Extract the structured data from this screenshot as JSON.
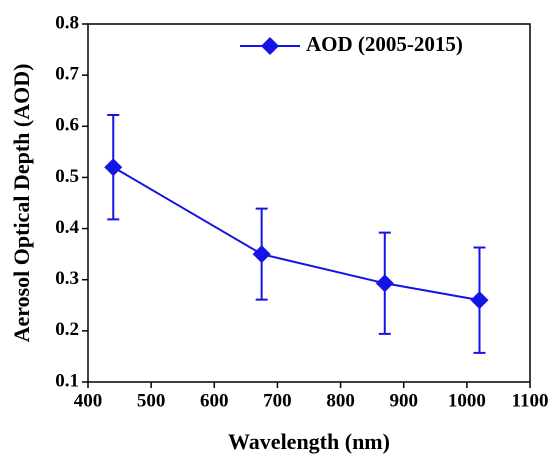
{
  "chart_data": {
    "type": "line",
    "x_label": "Wavelength (nm)",
    "y_label": "Aerosol Optical Depth (AOD)",
    "x": [
      440,
      675,
      870,
      1020
    ],
    "series": [
      {
        "name": "AOD (2005-2015)",
        "color": "#1414e6",
        "values": [
          0.52,
          0.35,
          0.293,
          0.26
        ],
        "errors": [
          0.102,
          0.089,
          0.099,
          0.103
        ]
      }
    ],
    "xlim": [
      400,
      1100
    ],
    "xticks": [
      400,
      500,
      600,
      700,
      800,
      900,
      1000,
      1100
    ],
    "ylim": [
      0.1,
      0.8
    ],
    "yticks": [
      0.1,
      0.2,
      0.3,
      0.4,
      0.5,
      0.6,
      0.7,
      0.8
    ],
    "legend": "upper right"
  }
}
